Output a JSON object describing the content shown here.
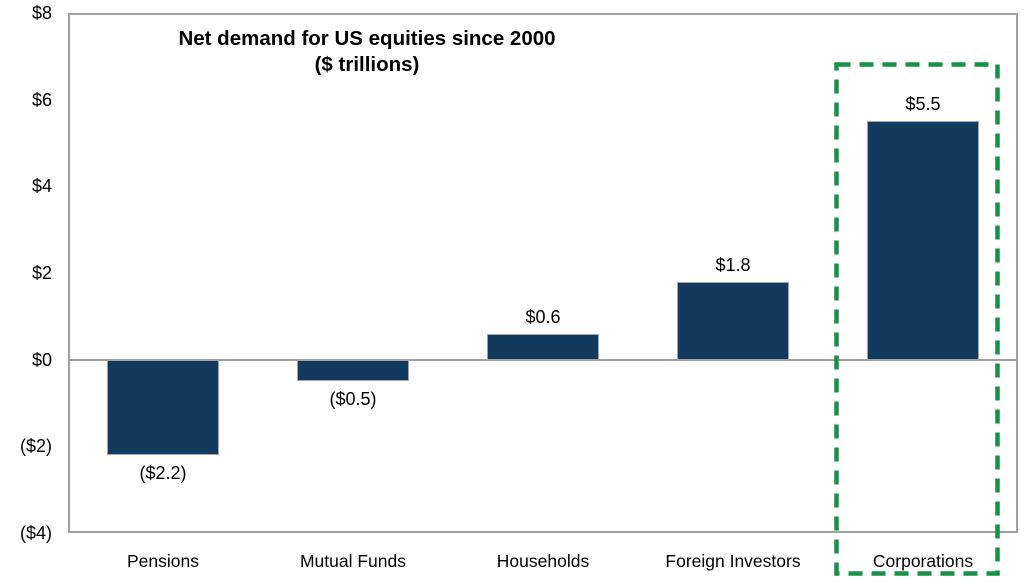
{
  "chart_data": {
    "type": "bar",
    "title": "Net demand for US equities since 2000",
    "subtitle": "($ trillions)",
    "categories": [
      "Pensions",
      "Mutual Funds",
      "Households",
      "Foreign Investors",
      "Corporations"
    ],
    "values": [
      -2.2,
      -0.5,
      0.6,
      1.8,
      5.5
    ],
    "value_labels": [
      "($2.2)",
      "($0.5)",
      "$0.6",
      "$1.8",
      "$5.5"
    ],
    "y_ticks": [
      {
        "value": 8,
        "label": "$8"
      },
      {
        "value": 6,
        "label": "$6"
      },
      {
        "value": 4,
        "label": "$4"
      },
      {
        "value": 2,
        "label": "$2"
      },
      {
        "value": 0,
        "label": "$0"
      },
      {
        "value": -2,
        "label": "($2)"
      },
      {
        "value": -4,
        "label": "($4)"
      }
    ],
    "ylim": [
      -4,
      8
    ],
    "grid": false,
    "legend": "none",
    "bar_color": "#113A5E",
    "axis_border_color": "#A0A0A0",
    "zero_line_color": "#A0A0A0",
    "highlight": {
      "category": "Corporations",
      "style": "dashed",
      "color": "#16914A"
    }
  }
}
